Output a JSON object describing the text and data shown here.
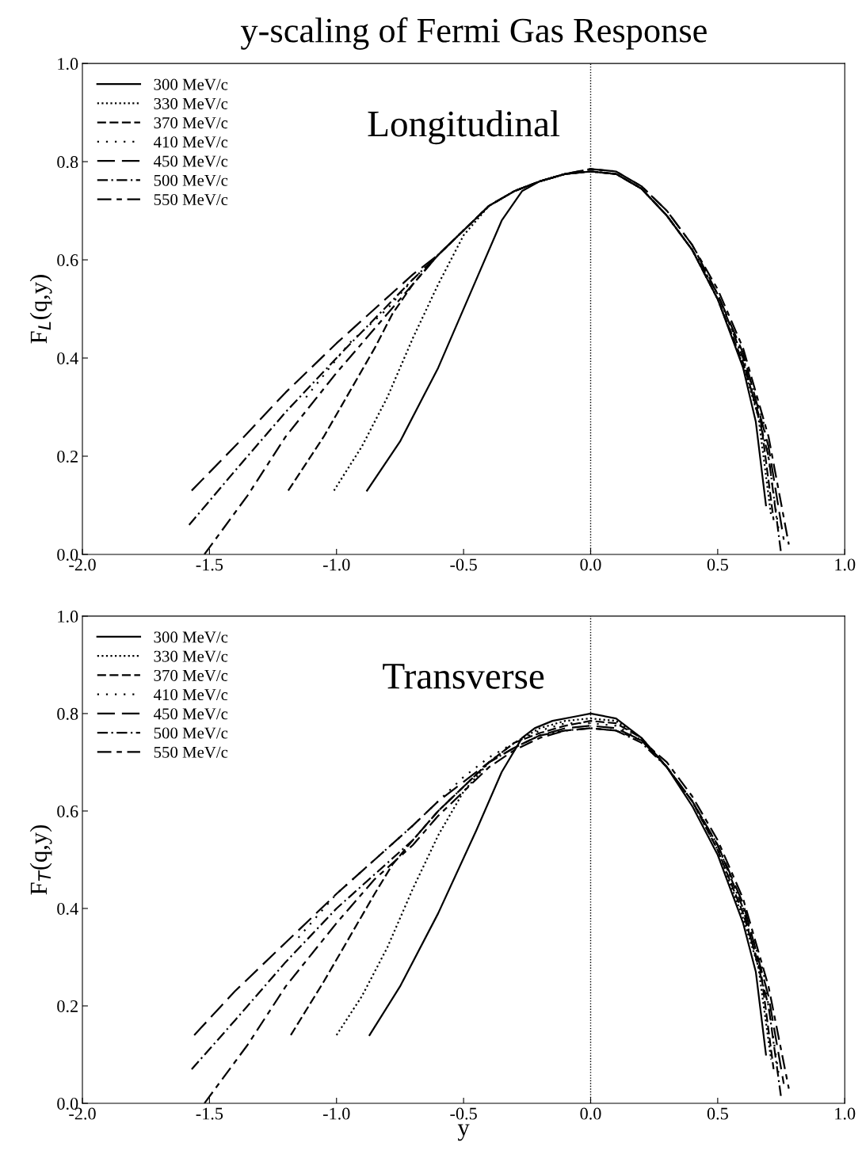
{
  "chart_data": [
    {
      "type": "line",
      "title": "y-scaling of Fermi Gas Response",
      "ylabel": "F$_{L}$(q,y)",
      "annotations": [
        "Longitudinal"
      ],
      "xlim": [
        -2.0,
        1.0
      ],
      "ylim": [
        0.0,
        1.0
      ],
      "xticks": [
        {
          "value": -2.0,
          "label": "-2.0"
        },
        {
          "value": -1.5,
          "label": "-1.5"
        },
        {
          "value": -1.0,
          "label": "-1.0"
        },
        {
          "value": -0.5,
          "label": "-0.5"
        },
        {
          "value": 0.0,
          "label": "0.0"
        },
        {
          "value": 0.5,
          "label": "0.5"
        },
        {
          "value": 1.0,
          "label": "1.0"
        }
      ],
      "yticks": [
        {
          "value": 0.0,
          "label": "0.0"
        },
        {
          "value": 0.2,
          "label": "0.2"
        },
        {
          "value": 0.4,
          "label": "0.4"
        },
        {
          "value": 0.6,
          "label": "0.6"
        },
        {
          "value": 0.8,
          "label": "0.8"
        },
        {
          "value": 1.0,
          "label": "1.0"
        }
      ],
      "grid": false,
      "legend": "top left",
      "ref_lines": [
        {
          "axis": "x",
          "value": 0.0,
          "line_style": "dotted",
          "color": "#000000"
        }
      ],
      "series": [
        {
          "name": "300 MeV/c",
          "color": "#000000",
          "line_style": "solid",
          "x": [
            -0.88,
            -0.75,
            -0.6,
            -0.45,
            -0.35,
            -0.27,
            -0.2,
            -0.1,
            0.0,
            0.1,
            0.2,
            0.3,
            0.4,
            0.5,
            0.6,
            0.65,
            0.69
          ],
          "values": [
            0.13,
            0.23,
            0.38,
            0.56,
            0.68,
            0.74,
            0.76,
            0.775,
            0.78,
            0.775,
            0.745,
            0.69,
            0.62,
            0.52,
            0.38,
            0.27,
            0.1
          ]
        },
        {
          "name": "330 MeV/c",
          "color": "#000000",
          "line_style": "dotted",
          "x": [
            -1.01,
            -0.9,
            -0.8,
            -0.7,
            -0.6,
            -0.5,
            -0.4,
            -0.3,
            -0.2,
            -0.1,
            0.0,
            0.1,
            0.2,
            0.3,
            0.4,
            0.5,
            0.6,
            0.66,
            0.71
          ],
          "values": [
            0.13,
            0.22,
            0.32,
            0.44,
            0.55,
            0.65,
            0.71,
            0.74,
            0.76,
            0.775,
            0.78,
            0.775,
            0.745,
            0.69,
            0.62,
            0.52,
            0.385,
            0.28,
            0.08
          ]
        },
        {
          "name": "370 MeV/c",
          "color": "#000000",
          "line_style": "dashed",
          "x": [
            -1.19,
            -1.05,
            -0.95,
            -0.85,
            -0.78,
            -0.7,
            -0.6,
            -0.5,
            -0.4,
            -0.3,
            -0.2,
            -0.1,
            0.0,
            0.1,
            0.2,
            0.3,
            0.4,
            0.5,
            0.6,
            0.67,
            0.72
          ],
          "values": [
            0.13,
            0.24,
            0.33,
            0.42,
            0.49,
            0.55,
            0.61,
            0.66,
            0.71,
            0.74,
            0.76,
            0.775,
            0.78,
            0.775,
            0.745,
            0.69,
            0.62,
            0.52,
            0.39,
            0.27,
            0.07
          ]
        },
        {
          "name": "410 MeV/c",
          "color": "#000000",
          "line_style": "sparsedot",
          "x": [
            -1.12,
            -0.95,
            -0.8,
            -0.7,
            -0.6,
            -0.5,
            -0.4,
            -0.3,
            -0.2,
            -0.1,
            0.0,
            0.1,
            0.2,
            0.3,
            0.4,
            0.5,
            0.6,
            0.68,
            0.74
          ],
          "values": [
            0.32,
            0.43,
            0.5,
            0.56,
            0.61,
            0.66,
            0.71,
            0.74,
            0.76,
            0.775,
            0.78,
            0.775,
            0.745,
            0.69,
            0.62,
            0.53,
            0.4,
            0.27,
            0.05
          ]
        },
        {
          "name": "450 MeV/c",
          "color": "#000000",
          "line_style": "longdash",
          "x": [
            -1.57,
            -1.4,
            -1.2,
            -1.0,
            -0.85,
            -0.7,
            -0.6,
            -0.5,
            -0.4,
            -0.3,
            -0.2,
            -0.1,
            0.0,
            0.1,
            0.2,
            0.3,
            0.4,
            0.5,
            0.6,
            0.7,
            0.76
          ],
          "values": [
            0.13,
            0.22,
            0.33,
            0.43,
            0.5,
            0.57,
            0.61,
            0.66,
            0.71,
            0.74,
            0.76,
            0.775,
            0.785,
            0.78,
            0.75,
            0.7,
            0.63,
            0.53,
            0.41,
            0.22,
            0.03
          ]
        },
        {
          "name": "500 MeV/c",
          "color": "#000000",
          "line_style": "dashdot",
          "x": [
            -1.58,
            -1.4,
            -1.2,
            -1.0,
            -0.85,
            -0.7,
            -0.6,
            -0.5,
            -0.4,
            -0.3,
            -0.2,
            -0.1,
            0.0,
            0.1,
            0.2,
            0.3,
            0.4,
            0.5,
            0.6,
            0.7,
            0.75
          ],
          "values": [
            0.06,
            0.17,
            0.29,
            0.4,
            0.48,
            0.56,
            0.61,
            0.66,
            0.71,
            0.74,
            0.76,
            0.775,
            0.78,
            0.775,
            0.745,
            0.69,
            0.62,
            0.53,
            0.4,
            0.2,
            0.0
          ]
        },
        {
          "name": "550 MeV/c",
          "color": "#000000",
          "line_style": "dashshort",
          "x": [
            -1.52,
            -1.35,
            -1.2,
            -1.0,
            -0.85,
            -0.7,
            -0.6,
            -0.5,
            -0.4,
            -0.3,
            -0.2,
            -0.1,
            0.0,
            0.1,
            0.2,
            0.3,
            0.4,
            0.5,
            0.6,
            0.7,
            0.78
          ],
          "values": [
            0.0,
            0.12,
            0.24,
            0.37,
            0.46,
            0.55,
            0.61,
            0.66,
            0.71,
            0.74,
            0.76,
            0.775,
            0.785,
            0.78,
            0.75,
            0.7,
            0.63,
            0.54,
            0.42,
            0.24,
            0.02
          ]
        }
      ]
    },
    {
      "type": "line",
      "xlabel": "y",
      "ylabel": "F$_{T}$(q,y)",
      "annotations": [
        "Transverse"
      ],
      "xlim": [
        -2.0,
        1.0
      ],
      "ylim": [
        0.0,
        1.0
      ],
      "xticks": [
        {
          "value": -2.0,
          "label": "-2.0"
        },
        {
          "value": -1.5,
          "label": "-1.5"
        },
        {
          "value": -1.0,
          "label": "-1.0"
        },
        {
          "value": -0.5,
          "label": "-0.5"
        },
        {
          "value": 0.0,
          "label": "0.0"
        },
        {
          "value": 0.5,
          "label": "0.5"
        },
        {
          "value": 1.0,
          "label": "1.0"
        }
      ],
      "yticks": [
        {
          "value": 0.0,
          "label": "0.0"
        },
        {
          "value": 0.2,
          "label": "0.2"
        },
        {
          "value": 0.4,
          "label": "0.4"
        },
        {
          "value": 0.6,
          "label": "0.6"
        },
        {
          "value": 0.8,
          "label": "0.8"
        },
        {
          "value": 1.0,
          "label": "1.0"
        }
      ],
      "grid": false,
      "legend": "top left",
      "ref_lines": [
        {
          "axis": "x",
          "value": 0.0,
          "line_style": "dotted",
          "color": "#000000"
        }
      ],
      "series": [
        {
          "name": "300 MeV/c",
          "color": "#000000",
          "line_style": "solid",
          "x": [
            -0.87,
            -0.75,
            -0.6,
            -0.45,
            -0.35,
            -0.27,
            -0.22,
            -0.15,
            -0.05,
            0.0,
            0.1,
            0.2,
            0.3,
            0.4,
            0.5,
            0.6,
            0.65,
            0.69
          ],
          "values": [
            0.14,
            0.24,
            0.39,
            0.56,
            0.68,
            0.75,
            0.77,
            0.785,
            0.795,
            0.8,
            0.79,
            0.75,
            0.69,
            0.61,
            0.51,
            0.37,
            0.27,
            0.1
          ]
        },
        {
          "name": "330 MeV/c",
          "color": "#000000",
          "line_style": "dotted",
          "x": [
            -1.0,
            -0.9,
            -0.8,
            -0.7,
            -0.6,
            -0.5,
            -0.4,
            -0.3,
            -0.2,
            -0.1,
            0.0,
            0.1,
            0.2,
            0.3,
            0.4,
            0.5,
            0.6,
            0.66,
            0.71
          ],
          "values": [
            0.14,
            0.22,
            0.32,
            0.44,
            0.55,
            0.64,
            0.7,
            0.74,
            0.77,
            0.785,
            0.79,
            0.785,
            0.75,
            0.69,
            0.62,
            0.52,
            0.38,
            0.28,
            0.09
          ]
        },
        {
          "name": "370 MeV/c",
          "color": "#000000",
          "line_style": "dashed",
          "x": [
            -1.18,
            -1.05,
            -0.95,
            -0.85,
            -0.78,
            -0.7,
            -0.6,
            -0.5,
            -0.4,
            -0.3,
            -0.2,
            -0.1,
            0.0,
            0.1,
            0.2,
            0.3,
            0.4,
            0.5,
            0.6,
            0.67,
            0.72
          ],
          "values": [
            0.14,
            0.25,
            0.34,
            0.43,
            0.49,
            0.54,
            0.6,
            0.65,
            0.7,
            0.74,
            0.76,
            0.775,
            0.785,
            0.78,
            0.75,
            0.69,
            0.62,
            0.52,
            0.39,
            0.27,
            0.07
          ]
        },
        {
          "name": "410 MeV/c",
          "color": "#000000",
          "line_style": "sparsedot",
          "x": [
            -1.15,
            -1.0,
            -0.85,
            -0.7,
            -0.6,
            -0.5,
            -0.4,
            -0.3,
            -0.2,
            -0.1,
            0.0,
            0.1,
            0.2,
            0.3,
            0.4,
            0.5,
            0.6,
            0.68,
            0.74
          ],
          "values": [
            0.34,
            0.43,
            0.5,
            0.57,
            0.62,
            0.67,
            0.71,
            0.74,
            0.765,
            0.78,
            0.78,
            0.775,
            0.745,
            0.69,
            0.62,
            0.53,
            0.4,
            0.27,
            0.06
          ]
        },
        {
          "name": "450 MeV/c",
          "color": "#000000",
          "line_style": "longdash",
          "x": [
            -1.56,
            -1.4,
            -1.2,
            -1.0,
            -0.85,
            -0.7,
            -0.6,
            -0.5,
            -0.4,
            -0.3,
            -0.2,
            -0.1,
            0.0,
            0.1,
            0.2,
            0.3,
            0.4,
            0.5,
            0.6,
            0.7,
            0.76
          ],
          "values": [
            0.14,
            0.23,
            0.33,
            0.43,
            0.5,
            0.57,
            0.62,
            0.66,
            0.7,
            0.73,
            0.755,
            0.77,
            0.775,
            0.77,
            0.745,
            0.69,
            0.62,
            0.53,
            0.41,
            0.22,
            0.04
          ]
        },
        {
          "name": "500 MeV/c",
          "color": "#000000",
          "line_style": "dashdot",
          "x": [
            -1.57,
            -1.4,
            -1.2,
            -1.0,
            -0.85,
            -0.7,
            -0.6,
            -0.5,
            -0.4,
            -0.3,
            -0.2,
            -0.1,
            0.0,
            0.1,
            0.2,
            0.3,
            0.4,
            0.5,
            0.6,
            0.7,
            0.75
          ],
          "values": [
            0.07,
            0.17,
            0.29,
            0.4,
            0.47,
            0.54,
            0.6,
            0.65,
            0.7,
            0.73,
            0.755,
            0.765,
            0.77,
            0.765,
            0.74,
            0.69,
            0.62,
            0.53,
            0.4,
            0.2,
            0.01
          ]
        },
        {
          "name": "550 MeV/c",
          "color": "#000000",
          "line_style": "dashshort",
          "x": [
            -1.52,
            -1.35,
            -1.2,
            -1.0,
            -0.85,
            -0.7,
            -0.6,
            -0.5,
            -0.4,
            -0.3,
            -0.2,
            -0.1,
            0.0,
            0.1,
            0.2,
            0.3,
            0.4,
            0.5,
            0.6,
            0.7,
            0.78
          ],
          "values": [
            0.0,
            0.12,
            0.24,
            0.37,
            0.46,
            0.53,
            0.59,
            0.64,
            0.69,
            0.725,
            0.75,
            0.765,
            0.77,
            0.765,
            0.745,
            0.7,
            0.63,
            0.54,
            0.42,
            0.24,
            0.03
          ]
        }
      ]
    }
  ]
}
